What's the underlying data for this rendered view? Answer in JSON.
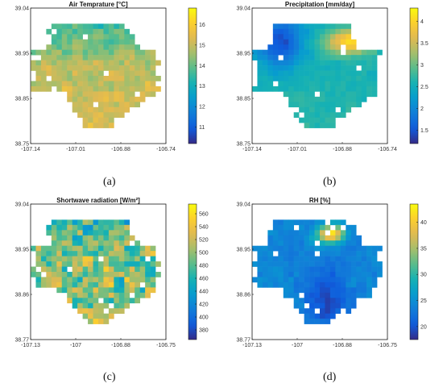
{
  "chart_data": [
    {
      "type": "heatmap",
      "panel_label": "(a)",
      "title": "Air Temprature [°C]",
      "xlim": [
        -107.14,
        -106.74
      ],
      "ylim": [
        38.75,
        39.04
      ],
      "xticks": [
        "-107.14",
        "-107.01",
        "-106.88",
        "-106.74"
      ],
      "yticks": [
        "38.75",
        "38.85",
        "38.95",
        "39.04"
      ],
      "colorbar": {
        "min": 10.2,
        "max": 16.8,
        "ticks": [
          "11",
          "12",
          "13",
          "14",
          "15",
          "16"
        ],
        "tick_values": [
          11,
          12,
          13,
          14,
          15,
          16
        ]
      },
      "summary": {
        "central_lowland_value": 15.5,
        "upper_edge_value": 13.0,
        "southeast_value": 16.2,
        "range_shown": [
          11,
          16
        ]
      }
    },
    {
      "type": "heatmap",
      "panel_label": "(b)",
      "title": "Precipitation [mm/day]",
      "xlim": [
        -107.14,
        -106.74
      ],
      "ylim": [
        38.75,
        39.04
      ],
      "xticks": [
        "-107.14",
        "-107.01",
        "-106.88",
        "-106.74"
      ],
      "yticks": [
        "38.75",
        "38.85",
        "38.95",
        "39.04"
      ],
      "colorbar": {
        "min": 1.2,
        "max": 4.3,
        "ticks": [
          "1.5",
          "2",
          "2.5",
          "3",
          "3.5",
          "4"
        ],
        "tick_values": [
          1.5,
          2,
          2.5,
          3,
          3.5,
          4
        ]
      },
      "summary": {
        "northeast_value": 4.0,
        "northwest_value": 1.6,
        "central_value": 2.6,
        "south_central_value": 3.0
      }
    },
    {
      "type": "heatmap",
      "panel_label": "(c)",
      "title": "Shortwave radiation [W/m²]",
      "xlim": [
        -107.13,
        -106.75
      ],
      "ylim": [
        38.77,
        39.04
      ],
      "xticks": [
        "-107.13",
        "-107",
        "-106.88",
        "-106.75"
      ],
      "yticks": [
        "38.77",
        "38.86",
        "38.95",
        "39.04"
      ],
      "colorbar": {
        "min": 365,
        "max": 575,
        "ticks": [
          "380",
          "400",
          "420",
          "440",
          "460",
          "480",
          "500",
          "520",
          "540",
          "560"
        ],
        "tick_values": [
          380,
          400,
          420,
          440,
          460,
          480,
          500,
          520,
          540,
          560
        ]
      },
      "summary": {
        "typical_value": 500,
        "north_edge_low": 400,
        "ridge_high": 560
      }
    },
    {
      "type": "heatmap",
      "panel_label": "(d)",
      "title": "RH [%]",
      "xlim": [
        -107.13,
        -106.75
      ],
      "ylim": [
        38.77,
        39.04
      ],
      "xticks": [
        "-107.13",
        "-107",
        "-106.88",
        "-106.75"
      ],
      "yticks": [
        "38.77",
        "38.86",
        "38.95",
        "39.04"
      ],
      "colorbar": {
        "min": 17.5,
        "max": 43.5,
        "ticks": [
          "20",
          "25",
          "30",
          "35",
          "40"
        ],
        "tick_values": [
          20,
          25,
          30,
          35,
          40
        ]
      },
      "summary": {
        "valley_value": 19,
        "typical_value": 24,
        "northeast_peak": 42
      }
    }
  ]
}
